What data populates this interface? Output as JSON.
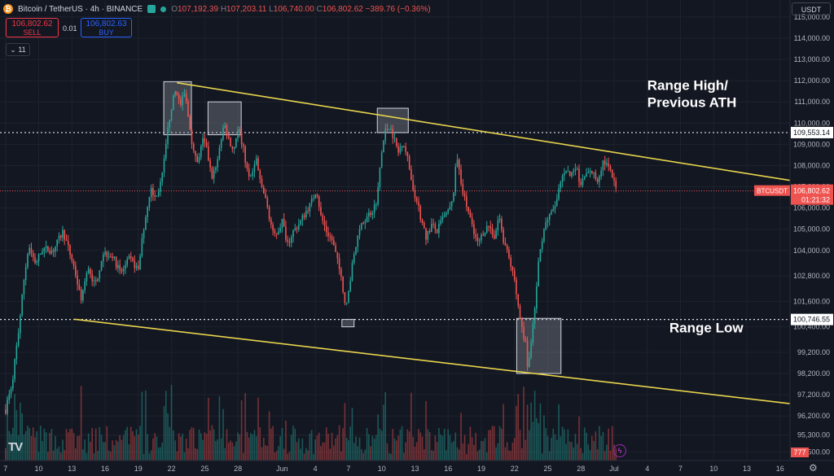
{
  "header": {
    "symbol": "Bitcoin / TetherUS · 4h · BINANCE",
    "logo_glyph": "₿",
    "ohlc": [
      {
        "k": "O",
        "v": "107,192.39"
      },
      {
        "k": "H",
        "v": "107,203.11"
      },
      {
        "k": "L",
        "v": "106,740.00"
      },
      {
        "k": "C",
        "v": "106,802.62"
      },
      {
        "k": "",
        "v": "−389.76 (−0.36%)"
      }
    ]
  },
  "trade": {
    "sell_price": "106,802.62",
    "sell_label": "SELL",
    "spread": "0.01",
    "buy_price": "106,802.63",
    "buy_label": "BUY"
  },
  "indicators_label": "11",
  "currency": "USDT",
  "colors": {
    "bg": "#131722",
    "up": "#26a69a",
    "down": "#ef5350",
    "trendline": "#e8d44d",
    "grid": "#1e222d",
    "axis_text": "#b2b5be"
  },
  "chart_data": {
    "type": "candlestick",
    "ylim": [
      94100,
      115800
    ],
    "y_ticks": [
      {
        "v": 115000,
        "label": "115,000.00"
      },
      {
        "v": 114000,
        "label": "114,000.00"
      },
      {
        "v": 113000,
        "label": "113,000.00"
      },
      {
        "v": 112000,
        "label": "112,000.00"
      },
      {
        "v": 111000,
        "label": "111,000.00"
      },
      {
        "v": 110000,
        "label": "110,000.00"
      },
      {
        "v": 109000,
        "label": "109,000.00"
      },
      {
        "v": 108000,
        "label": "108,000.00"
      },
      {
        "v": 107000,
        "label": "107,000.00"
      },
      {
        "v": 106000,
        "label": "106,000.00"
      },
      {
        "v": 105000,
        "label": "105,000.00"
      },
      {
        "v": 104000,
        "label": "104,000.00"
      },
      {
        "v": 102800,
        "label": "102,800.00"
      },
      {
        "v": 101600,
        "label": "101,600.00"
      },
      {
        "v": 100400,
        "label": "100,400.00"
      },
      {
        "v": 99200,
        "label": "99,200.00"
      },
      {
        "v": 98200,
        "label": "98,200.00"
      },
      {
        "v": 97200,
        "label": "97,200.00"
      },
      {
        "v": 96200,
        "label": "96,200.00"
      },
      {
        "v": 95300,
        "label": "95,300.00"
      },
      {
        "v": 94500,
        "label": "94,500.00"
      }
    ],
    "x_ticks": [
      {
        "t": 0,
        "label": "7"
      },
      {
        "t": 3,
        "label": "10"
      },
      {
        "t": 6,
        "label": "13"
      },
      {
        "t": 9,
        "label": "16"
      },
      {
        "t": 12,
        "label": "19"
      },
      {
        "t": 15,
        "label": "22"
      },
      {
        "t": 18,
        "label": "25"
      },
      {
        "t": 21,
        "label": "28"
      },
      {
        "t": 25,
        "label": "Jun"
      },
      {
        "t": 28,
        "label": "4"
      },
      {
        "t": 31,
        "label": "7"
      },
      {
        "t": 34,
        "label": "10"
      },
      {
        "t": 37,
        "label": "13"
      },
      {
        "t": 40,
        "label": "16"
      },
      {
        "t": 43,
        "label": "19"
      },
      {
        "t": 46,
        "label": "22"
      },
      {
        "t": 49,
        "label": "25"
      },
      {
        "t": 52,
        "label": "28"
      },
      {
        "t": 55,
        "label": "Jul"
      },
      {
        "t": 58,
        "label": "4"
      },
      {
        "t": 61,
        "label": "7"
      },
      {
        "t": 64,
        "label": "10"
      },
      {
        "t": 67,
        "label": "13"
      },
      {
        "t": 70,
        "label": "16"
      }
    ],
    "xlim": [
      -0.5,
      70.9
    ],
    "path": [
      [
        0,
        96500
      ],
      [
        0.6,
        97800
      ],
      [
        1.2,
        100300
      ],
      [
        1.7,
        102800
      ],
      [
        2.1,
        104200
      ],
      [
        2.7,
        103400
      ],
      [
        3.4,
        104100
      ],
      [
        4.3,
        104000
      ],
      [
        5.2,
        104900
      ],
      [
        6.2,
        103200
      ],
      [
        6.8,
        101700
      ],
      [
        7.5,
        103200
      ],
      [
        8.1,
        102300
      ],
      [
        8.8,
        103900
      ],
      [
        9.6,
        103800
      ],
      [
        10.4,
        102900
      ],
      [
        11.2,
        103600
      ],
      [
        12,
        103100
      ],
      [
        12.6,
        105500
      ],
      [
        13.1,
        106900
      ],
      [
        13.6,
        106400
      ],
      [
        14.2,
        107600
      ],
      [
        14.6,
        109500
      ],
      [
        15,
        110800
      ],
      [
        15.4,
        111600
      ],
      [
        15.8,
        110800
      ],
      [
        16.2,
        111400
      ],
      [
        16.6,
        110000
      ],
      [
        17,
        108600
      ],
      [
        17.4,
        108000
      ],
      [
        17.8,
        109200
      ],
      [
        18.2,
        108700
      ],
      [
        18.6,
        107500
      ],
      [
        19,
        107800
      ],
      [
        19.4,
        109100
      ],
      [
        19.8,
        109900
      ],
      [
        20.2,
        109200
      ],
      [
        20.6,
        108700
      ],
      [
        21,
        109800
      ],
      [
        21.4,
        109000
      ],
      [
        21.8,
        107900
      ],
      [
        22.2,
        107300
      ],
      [
        22.6,
        108500
      ],
      [
        23,
        107200
      ],
      [
        23.4,
        106600
      ],
      [
        23.8,
        105700
      ],
      [
        24.2,
        104700
      ],
      [
        24.6,
        104900
      ],
      [
        25,
        105400
      ],
      [
        25.5,
        104300
      ],
      [
        26,
        104900
      ],
      [
        26.6,
        105300
      ],
      [
        27.1,
        105800
      ],
      [
        27.6,
        106200
      ],
      [
        28.1,
        106900
      ],
      [
        28.5,
        105600
      ],
      [
        29,
        104900
      ],
      [
        29.5,
        104500
      ],
      [
        29.9,
        103700
      ],
      [
        30.3,
        102800
      ],
      [
        30.6,
        101700
      ],
      [
        30.8,
        101300
      ],
      [
        31.1,
        102400
      ],
      [
        31.5,
        103900
      ],
      [
        31.9,
        104800
      ],
      [
        32.3,
        105300
      ],
      [
        32.8,
        105700
      ],
      [
        33.2,
        105900
      ],
      [
        33.6,
        106500
      ],
      [
        33.9,
        108300
      ],
      [
        34.3,
        109600
      ],
      [
        34.7,
        109900
      ],
      [
        35.1,
        109300
      ],
      [
        35.5,
        108600
      ],
      [
        35.9,
        109200
      ],
      [
        36.3,
        108400
      ],
      [
        36.7,
        107300
      ],
      [
        37.1,
        106400
      ],
      [
        37.5,
        105600
      ],
      [
        38,
        104600
      ],
      [
        38.5,
        105200
      ],
      [
        39,
        104900
      ],
      [
        39.5,
        105500
      ],
      [
        40,
        105800
      ],
      [
        40.4,
        106300
      ],
      [
        40.8,
        108500
      ],
      [
        41.1,
        107400
      ],
      [
        41.5,
        106400
      ],
      [
        41.9,
        105700
      ],
      [
        42.3,
        104800
      ],
      [
        42.7,
        104300
      ],
      [
        43.2,
        104900
      ],
      [
        43.7,
        105200
      ],
      [
        44.2,
        104600
      ],
      [
        44.6,
        105700
      ],
      [
        44.9,
        104700
      ],
      [
        45.3,
        104000
      ],
      [
        45.7,
        103200
      ],
      [
        46.1,
        102400
      ],
      [
        46.4,
        101100
      ],
      [
        46.7,
        100200
      ],
      [
        47,
        99600
      ],
      [
        47.2,
        98400
      ],
      [
        47.5,
        99600
      ],
      [
        47.8,
        101000
      ],
      [
        48.1,
        103100
      ],
      [
        48.4,
        104300
      ],
      [
        48.8,
        105300
      ],
      [
        49.3,
        105700
      ],
      [
        49.8,
        106300
      ],
      [
        50.2,
        107300
      ],
      [
        50.6,
        107900
      ],
      [
        51,
        107500
      ],
      [
        51.5,
        108000
      ],
      [
        52,
        107100
      ],
      [
        52.5,
        107600
      ],
      [
        53,
        107700
      ],
      [
        53.5,
        107300
      ],
      [
        54,
        108200
      ],
      [
        54.4,
        108000
      ],
      [
        54.8,
        107500
      ],
      [
        55.1,
        107000
      ],
      [
        55.25,
        106800
      ]
    ],
    "zones": [
      {
        "t1": 14.3,
        "t2": 16.8,
        "top": 111950,
        "bottom": 109450
      },
      {
        "t1": 18.3,
        "t2": 21.3,
        "top": 111000,
        "bottom": 109450
      },
      {
        "t1": 33.6,
        "t2": 36.4,
        "top": 110700,
        "bottom": 109550
      },
      {
        "t1": 30.4,
        "t2": 31.5,
        "top": 100750,
        "bottom": 100400
      },
      {
        "t1": 46.2,
        "t2": 50.2,
        "top": 100800,
        "bottom": 98200
      }
    ],
    "trendlines": [
      {
        "t1": 15.5,
        "v1": 111900,
        "t2": 70.9,
        "v2": 107300
      },
      {
        "t1": 6.2,
        "v1": 100760,
        "t2": 70.9,
        "v2": 96780
      }
    ],
    "hlines": [
      {
        "v": 109553.14,
        "label": "109,553.14"
      },
      {
        "v": 100746.55,
        "label": "100,746.55"
      }
    ],
    "price_line": {
      "v": 106802.62,
      "label": "106,802.62",
      "tag": "BTCUSDT",
      "countdown": "01:21:32"
    },
    "annotations": [
      {
        "text": "Range High/",
        "v": 111570,
        "t": 58
      },
      {
        "text": "Previous ATH",
        "v": 110750,
        "t": 58
      },
      {
        "text": "Range Low",
        "v": 100130,
        "t": 60
      }
    ],
    "volume_label": "777"
  }
}
